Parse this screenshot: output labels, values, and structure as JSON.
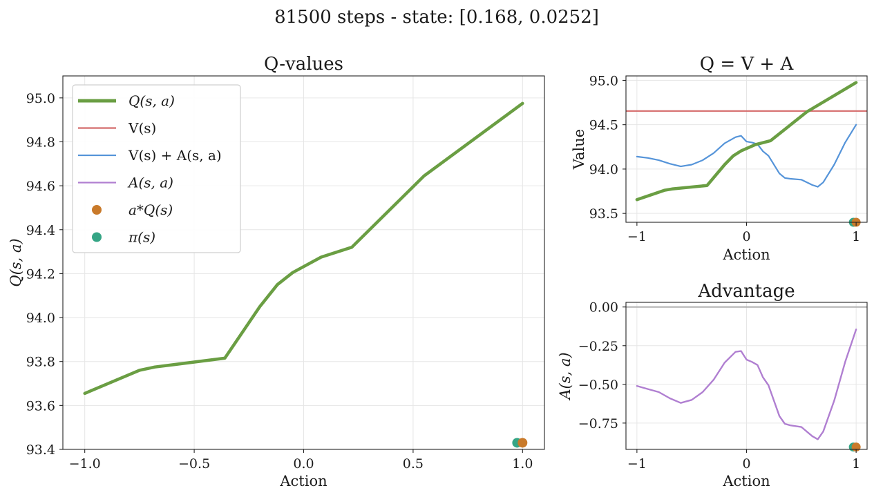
{
  "figure": {
    "title": "81500 steps - state: [0.168, 0.0252]"
  },
  "colors": {
    "q": "#6a9e43",
    "v": "#d46a6a",
    "vpa": "#5594d9",
    "adv": "#b07fd1",
    "aq": "#c97a2a",
    "pi": "#35a585",
    "zero": "#b0b0b0"
  },
  "chart_data": [
    {
      "type": "line",
      "title": "Q-values",
      "xlabel": "Action",
      "ylabel": "Q(s, a)",
      "xlim": [
        -1.1,
        1.1
      ],
      "ylim": [
        93.4,
        95.1
      ],
      "xticks": [
        -1.0,
        -0.5,
        0.0,
        0.5,
        1.0
      ],
      "xtick_labels": [
        "−1.0",
        "−0.5",
        "0.0",
        "0.5",
        "1.0"
      ],
      "yticks": [
        93.4,
        93.6,
        93.8,
        94.0,
        94.2,
        94.4,
        94.6,
        94.8,
        95.0
      ],
      "ytick_labels": [
        "93.4",
        "93.6",
        "93.8",
        "94.0",
        "94.2",
        "94.4",
        "94.6",
        "94.8",
        "95.0"
      ],
      "grid": true,
      "legend": {
        "position": "top-left",
        "entries": [
          {
            "key": "q",
            "label": "Q(s, a)",
            "kind": "thick-line"
          },
          {
            "key": "v",
            "label": "V(s)",
            "kind": "line"
          },
          {
            "key": "vpa",
            "label": "V(s) + A(s, a)",
            "kind": "line"
          },
          {
            "key": "adv",
            "label": "A(s, a)",
            "kind": "line"
          },
          {
            "key": "aq",
            "label": "a*Q(s)",
            "kind": "dot"
          },
          {
            "key": "pi",
            "label": "π(s)",
            "kind": "dot"
          }
        ]
      },
      "series": [
        {
          "key": "q",
          "x": [
            -1.0,
            -0.75,
            -0.68,
            -0.36,
            -0.2,
            -0.12,
            -0.05,
            0.08,
            0.22,
            0.55,
            1.0
          ],
          "y": [
            93.655,
            93.76,
            93.775,
            93.815,
            94.05,
            94.15,
            94.205,
            94.275,
            94.32,
            94.645,
            94.975
          ]
        }
      ],
      "points": [
        {
          "key": "pi",
          "x": 0.975,
          "y": 93.43
        },
        {
          "key": "aq",
          "x": 1.0,
          "y": 93.43
        }
      ]
    },
    {
      "type": "line",
      "title": "Q = V + A",
      "xlabel": "Action",
      "ylabel": "Value",
      "xlim": [
        -1.1,
        1.1
      ],
      "ylim": [
        93.4,
        95.05
      ],
      "xticks": [
        -1,
        0,
        1
      ],
      "xtick_labels": [
        "−1",
        "0",
        "1"
      ],
      "yticks": [
        93.5,
        94.0,
        94.5,
        95.0
      ],
      "ytick_labels": [
        "93.5",
        "94.0",
        "94.5",
        "95.0"
      ],
      "grid": true,
      "series": [
        {
          "key": "v",
          "x": [
            -1.1,
            1.1
          ],
          "y": [
            94.655,
            94.655
          ]
        },
        {
          "key": "vpa",
          "x": [
            -1.0,
            -0.9,
            -0.8,
            -0.7,
            -0.6,
            -0.5,
            -0.4,
            -0.3,
            -0.2,
            -0.1,
            -0.05,
            0.0,
            0.05,
            0.1,
            0.15,
            0.2,
            0.3,
            0.35,
            0.4,
            0.5,
            0.6,
            0.65,
            0.7,
            0.8,
            0.9,
            1.0
          ],
          "y": [
            94.14,
            94.125,
            94.1,
            94.06,
            94.03,
            94.05,
            94.1,
            94.18,
            94.29,
            94.36,
            94.375,
            94.31,
            94.3,
            94.28,
            94.2,
            94.15,
            93.95,
            93.9,
            93.89,
            93.88,
            93.82,
            93.8,
            93.85,
            94.05,
            94.3,
            94.5
          ]
        },
        {
          "key": "q",
          "x": [
            -1.0,
            -0.75,
            -0.68,
            -0.36,
            -0.2,
            -0.12,
            -0.05,
            0.08,
            0.22,
            0.55,
            1.0
          ],
          "y": [
            93.655,
            93.76,
            93.775,
            93.815,
            94.05,
            94.15,
            94.205,
            94.275,
            94.32,
            94.645,
            94.975
          ]
        }
      ],
      "points": [
        {
          "key": "pi",
          "x": 0.975,
          "y": 93.4
        },
        {
          "key": "aq",
          "x": 1.0,
          "y": 93.4
        }
      ]
    },
    {
      "type": "line",
      "title": "Advantage",
      "xlabel": "Action",
      "ylabel": "A(s, a)",
      "xlim": [
        -1.1,
        1.1
      ],
      "ylim": [
        -0.92,
        0.03
      ],
      "xticks": [
        -1,
        0,
        1
      ],
      "xtick_labels": [
        "−1",
        "0",
        "1"
      ],
      "yticks": [
        0.0,
        -0.25,
        -0.5,
        -0.75
      ],
      "ytick_labels": [
        "0.00",
        "−0.25",
        "−0.50",
        "−0.75"
      ],
      "grid": true,
      "series": [
        {
          "key": "zero",
          "x": [
            -1.1,
            1.1
          ],
          "y": [
            0.0,
            0.0
          ]
        },
        {
          "key": "adv",
          "x": [
            -1.0,
            -0.9,
            -0.8,
            -0.7,
            -0.6,
            -0.5,
            -0.4,
            -0.3,
            -0.2,
            -0.1,
            -0.05,
            0.0,
            0.05,
            0.1,
            0.15,
            0.2,
            0.3,
            0.35,
            0.4,
            0.5,
            0.6,
            0.65,
            0.7,
            0.8,
            0.9,
            1.0
          ],
          "y": [
            -0.51,
            -0.53,
            -0.55,
            -0.59,
            -0.62,
            -0.6,
            -0.55,
            -0.47,
            -0.36,
            -0.29,
            -0.285,
            -0.34,
            -0.355,
            -0.375,
            -0.455,
            -0.505,
            -0.705,
            -0.755,
            -0.765,
            -0.775,
            -0.835,
            -0.855,
            -0.805,
            -0.605,
            -0.355,
            -0.145
          ]
        }
      ],
      "points": [
        {
          "key": "pi",
          "x": 0.975,
          "y": -0.905
        },
        {
          "key": "aq",
          "x": 1.0,
          "y": -0.905
        }
      ]
    }
  ]
}
